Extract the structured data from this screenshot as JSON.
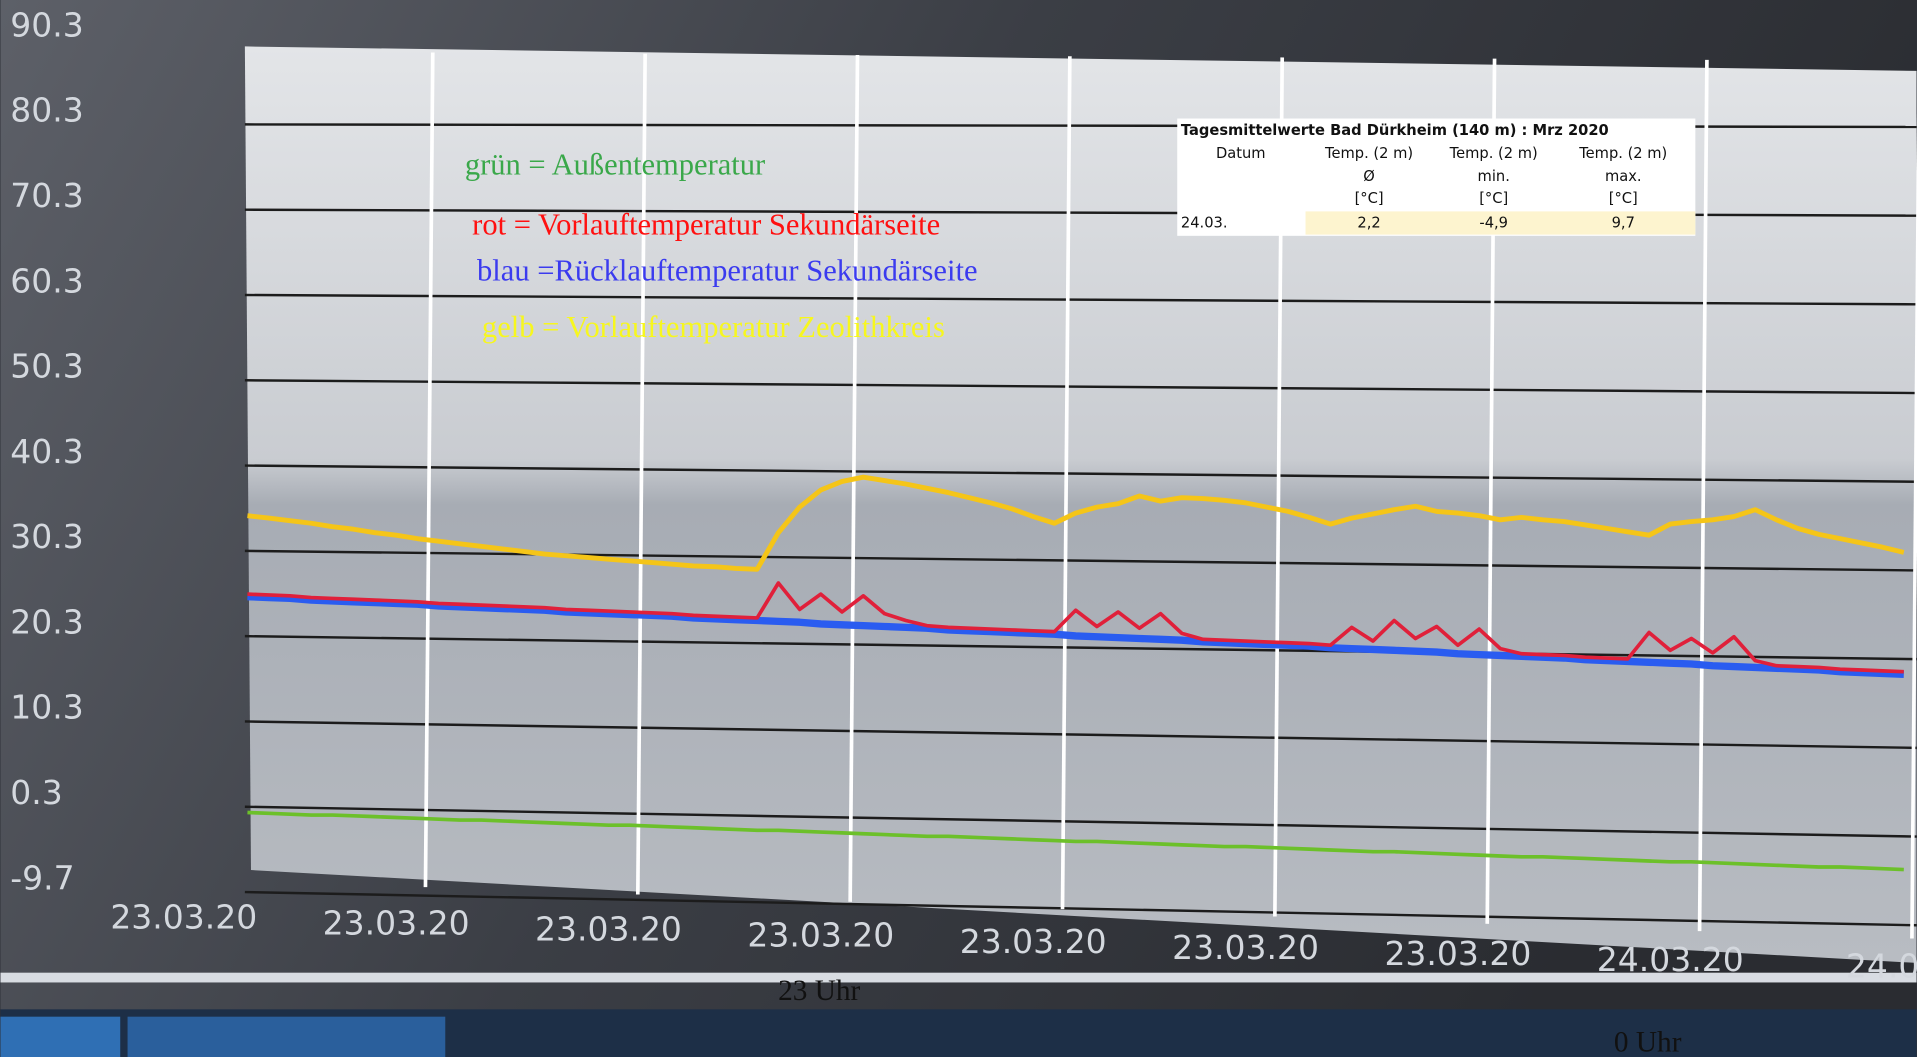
{
  "chart_data": {
    "type": "line",
    "series": [
      {
        "name": "grün = Außentemperatur",
        "color": "#6cc02a",
        "values": [
          -1.8,
          -1.9,
          -2.0,
          -2.1,
          -2.1,
          -2.2,
          -2.3,
          -2.4,
          -2.5,
          -2.6,
          -2.7,
          -2.7,
          -2.8,
          -2.9,
          -3.0,
          -3.1,
          -3.2,
          -3.3,
          -3.3,
          -3.4,
          -3.5,
          -3.6,
          -3.7,
          -3.8,
          -3.9,
          -3.9,
          -4.0,
          -4.1,
          -4.2,
          -4.3,
          -4.4,
          -4.5,
          -4.6,
          -4.6,
          -4.7,
          -4.8,
          -4.9,
          -5.0,
          -5.1,
          -5.2,
          -5.2,
          -5.3,
          -5.4,
          -5.5,
          -5.6,
          -5.7,
          -5.8,
          -5.8,
          -5.9,
          -6.0,
          -6.1,
          -6.2,
          -6.3,
          -6.4,
          -6.4,
          -6.5,
          -6.6,
          -6.7,
          -6.8,
          -6.9,
          -7.0,
          -7.0,
          -7.1,
          -7.2,
          -7.3,
          -7.4,
          -7.5,
          -7.6,
          -7.6,
          -7.7,
          -7.8,
          -7.9,
          -8.0,
          -8.1,
          -8.2,
          -8.2,
          -8.3,
          -8.4,
          -8.5
        ]
      },
      {
        "name": "rot  = Vorlauftemperatur Sekundärseite",
        "color": "#e0203a",
        "values": [
          23.8,
          23.7,
          23.6,
          23.4,
          23.3,
          23.2,
          23.1,
          23.0,
          22.9,
          22.7,
          22.6,
          22.5,
          22.4,
          22.3,
          22.2,
          22.0,
          21.9,
          21.8,
          21.7,
          21.6,
          21.5,
          21.3,
          21.2,
          21.1,
          21.0,
          25.1,
          22.0,
          23.8,
          21.7,
          23.6,
          21.5,
          20.7,
          20.1,
          19.9,
          19.8,
          19.7,
          19.6,
          19.5,
          19.4,
          21.9,
          20.0,
          21.7,
          19.8,
          21.5,
          19.2,
          18.5,
          18.4,
          18.3,
          18.2,
          18.1,
          18.0,
          17.8,
          19.9,
          18.3,
          20.7,
          18.6,
          20.0,
          17.8,
          19.7,
          17.4,
          16.8,
          16.7,
          16.6,
          16.4,
          16.3,
          16.2,
          19.3,
          17.2,
          18.6,
          16.9,
          18.8,
          16.0,
          15.4,
          15.3,
          15.2,
          15.0,
          14.9,
          14.8,
          14.7
        ]
      },
      {
        "name": "blau =Rücklauftemperatur Sekundärseite",
        "color": "#2a5cf0",
        "values": [
          23.5,
          23.4,
          23.3,
          23.1,
          23.0,
          22.9,
          22.8,
          22.7,
          22.6,
          22.4,
          22.3,
          22.2,
          22.1,
          22.0,
          21.9,
          21.7,
          21.6,
          21.5,
          21.4,
          21.3,
          21.2,
          21.0,
          20.9,
          20.8,
          20.7,
          20.6,
          20.5,
          20.3,
          20.2,
          20.1,
          20.0,
          19.9,
          19.8,
          19.6,
          19.5,
          19.4,
          19.3,
          19.2,
          19.1,
          18.9,
          18.8,
          18.7,
          18.6,
          18.5,
          18.4,
          18.2,
          18.1,
          18.0,
          17.9,
          17.8,
          17.7,
          17.5,
          17.4,
          17.3,
          17.2,
          17.1,
          17.0,
          16.8,
          16.7,
          16.6,
          16.5,
          16.4,
          16.3,
          16.1,
          16.0,
          15.9,
          15.8,
          15.7,
          15.6,
          15.4,
          15.3,
          15.2,
          15.1,
          15.0,
          14.9,
          14.7,
          14.6,
          14.5,
          14.4
        ]
      },
      {
        "name": "gelb = Vorlauftemperatur Zeolithkreis",
        "color": "#f5c518",
        "values": [
          33.0,
          32.7,
          32.4,
          32.1,
          31.7,
          31.4,
          31.0,
          30.7,
          30.3,
          30.0,
          29.7,
          29.4,
          29.1,
          28.8,
          28.5,
          28.3,
          28.1,
          27.9,
          27.7,
          27.5,
          27.3,
          27.1,
          27.0,
          26.8,
          26.7,
          31.0,
          34.0,
          36.0,
          37.0,
          37.5,
          37.1,
          36.7,
          36.2,
          35.7,
          35.1,
          34.5,
          33.8,
          32.9,
          32.1,
          33.3,
          34.0,
          34.4,
          35.3,
          34.7,
          35.1,
          35.0,
          34.8,
          34.5,
          34.0,
          33.5,
          32.8,
          32.0,
          32.7,
          33.2,
          33.7,
          34.1,
          33.5,
          33.3,
          33.0,
          32.5,
          32.8,
          32.5,
          32.3,
          31.9,
          31.5,
          31.1,
          30.7,
          32.0,
          32.3,
          32.5,
          32.9,
          33.7,
          32.5,
          31.5,
          30.8,
          30.3,
          29.8,
          29.3,
          28.7
        ]
      }
    ],
    "x": [
      3,
      4,
      5,
      6,
      7,
      8,
      9,
      10,
      11,
      12,
      13,
      14,
      15,
      16,
      17,
      18,
      19,
      20,
      21,
      22,
      23,
      24,
      25,
      26,
      27,
      28,
      29,
      30,
      31,
      32,
      33,
      34,
      35,
      36,
      37,
      38,
      39,
      40,
      41,
      42,
      43,
      44,
      45,
      46,
      47,
      48,
      49,
      50,
      51,
      52,
      53,
      54,
      55,
      56,
      57,
      58,
      59,
      60,
      61,
      62,
      63,
      64,
      65,
      66,
      67,
      68,
      69,
      70,
      71,
      72,
      73,
      74,
      75,
      76,
      77,
      78,
      79,
      80,
      81
    ],
    "xlim": [
      0,
      82
    ],
    "xticks": [
      {
        "value": 0,
        "label": "23.03.20"
      },
      {
        "value": 10,
        "label": "23.03.20"
      },
      {
        "value": 20,
        "label": "23.03.20"
      },
      {
        "value": 30,
        "label": "23.03.20"
      },
      {
        "value": 40,
        "label": "23.03.20"
      },
      {
        "value": 50,
        "label": "23.03.20"
      },
      {
        "value": 60,
        "label": "23.03.20"
      },
      {
        "value": 70,
        "label": "24.03.20"
      },
      {
        "value": 80,
        "label": "24.0"
      }
    ],
    "ylim": [
      -9.7,
      90.3
    ],
    "yticks": [
      90.3,
      80.3,
      70.3,
      60.3,
      50.3,
      40.3,
      30.3,
      20.3,
      10.3,
      0.3,
      -9.7
    ],
    "grid": true,
    "annotations": [
      "23 Uhr",
      "0 Uhr"
    ]
  },
  "table": {
    "title": "Tagesmittelwerte Bad Dürkheim (140 m) : Mrz 2020",
    "columns": [
      [
        "Datum"
      ],
      [
        "Temp. (2 m)",
        "Ø",
        "[°C]"
      ],
      [
        "Temp. (2 m)",
        "min.",
        "[°C]"
      ],
      [
        "Temp. (2 m)",
        "max.",
        "[°C]"
      ]
    ],
    "rows": [
      [
        "24.03.",
        "2,2",
        "-4,9",
        "9,7"
      ]
    ]
  }
}
